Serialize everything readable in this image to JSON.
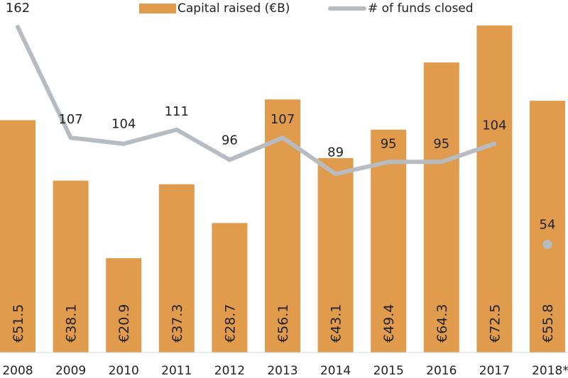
{
  "chart_data": {
    "type": "bar+line",
    "title": "",
    "categories": [
      "2008",
      "2009",
      "2010",
      "2011",
      "2012",
      "2013",
      "2014",
      "2015",
      "2016",
      "2017",
      "2018*"
    ],
    "series": [
      {
        "name": "Capital raised (€B)",
        "type": "bar",
        "color": "#e09b4c",
        "values": [
          51.5,
          38.1,
          20.9,
          37.3,
          28.7,
          56.1,
          43.1,
          49.4,
          64.3,
          72.5,
          55.8
        ],
        "labels": [
          "€51.5",
          "€38.1",
          "€20.9",
          "€37.3",
          "€28.7",
          "€56.1",
          "€43.1",
          "€49.4",
          "€64.3",
          "€72.5",
          "€55.8"
        ]
      },
      {
        "name": "# of funds closed",
        "type": "line",
        "color": "#b7bcc2",
        "values": [
          162,
          107,
          104,
          111,
          96,
          107,
          89,
          95,
          95,
          104,
          54
        ],
        "labels": [
          "162",
          "107",
          "104",
          "111",
          "96",
          "107",
          "89",
          "95",
          "95",
          "104",
          "54"
        ],
        "note": "2018* shown as a standalone dot, not connected to the line"
      }
    ],
    "xlabel": "",
    "ylabel": "",
    "legend_position": "top",
    "grid": false
  },
  "legend": {
    "bar_label": "Capital raised (€B)",
    "line_label": "# of funds closed"
  }
}
